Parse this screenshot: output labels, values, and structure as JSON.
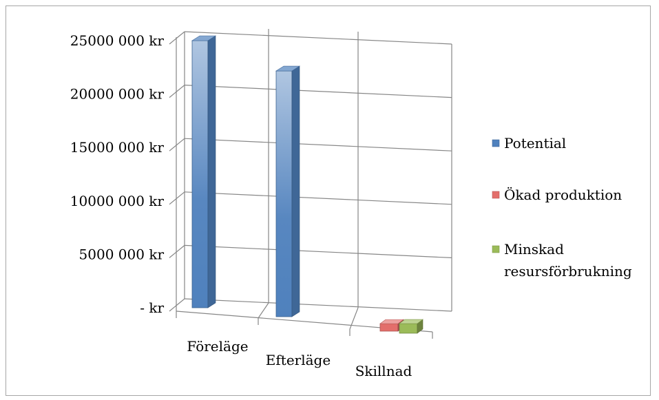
{
  "chart_data": {
    "type": "bar",
    "style": "3d-column",
    "title": "",
    "xlabel": "",
    "ylabel": "",
    "ylim": [
      0,
      25000000
    ],
    "y_ticks": [
      {
        "value": 25000000,
        "label": "25000 000 kr"
      },
      {
        "value": 20000000,
        "label": "20000 000 kr"
      },
      {
        "value": 15000000,
        "label": "15000 000 kr"
      },
      {
        "value": 10000000,
        "label": "10000 000 kr"
      },
      {
        "value": 5000000,
        "label": "5000 000 kr"
      },
      {
        "value": 0,
        "label": "-   kr"
      }
    ],
    "categories": [
      "Föreläge",
      "Efterläge",
      "Skillnad"
    ],
    "series": [
      {
        "name": "Potential",
        "color": "#4f81bd",
        "values": [
          25000000,
          23000000,
          null
        ]
      },
      {
        "name": "Ökad produktion",
        "color": "#e36e6b",
        "values": [
          null,
          null,
          700000
        ]
      },
      {
        "name": "Minskad resursförbrukning",
        "color": "#9bbb59",
        "values": [
          null,
          null,
          900000
        ]
      }
    ],
    "grid": true,
    "legend_position": "right"
  },
  "legend": {
    "items": [
      {
        "lines": [
          "Potential"
        ],
        "color": "#4f81bd"
      },
      {
        "lines": [
          "Ökad produktion"
        ],
        "color": "#e36e6b"
      },
      {
        "lines": [
          "Minskad",
          "resursförbrukning"
        ],
        "color": "#9bbb59"
      }
    ]
  }
}
